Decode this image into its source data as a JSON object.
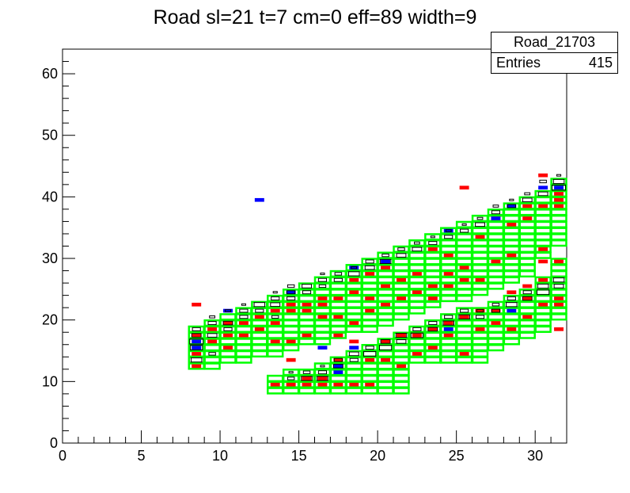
{
  "chart_data": {
    "type": "heatmap",
    "title": "Road sl=21 t=7 cm=0 eff=89 width=9",
    "xlabel": "",
    "ylabel": "",
    "xlim": [
      0,
      32
    ],
    "ylim": [
      0,
      64
    ],
    "x_ticks": [
      "0",
      "5",
      "10",
      "15",
      "20",
      "25",
      "30"
    ],
    "y_ticks": [
      "0",
      "10",
      "20",
      "30",
      "40",
      "50",
      "60"
    ],
    "stats": {
      "name": "Road_21703",
      "entries_label": "Entries",
      "entries_value": "415"
    },
    "colors": {
      "road": "#00ff00",
      "hit_red": "#ff0000",
      "hit_blue": "#0000ff",
      "box": "#000000"
    },
    "road_columns": [
      {
        "x": 8,
        "bands": [
          [
            12,
            19
          ]
        ]
      },
      {
        "x": 9,
        "bands": [
          [
            12,
            20
          ]
        ]
      },
      {
        "x": 10,
        "bands": [
          [
            13,
            21
          ]
        ]
      },
      {
        "x": 11,
        "bands": [
          [
            13,
            22
          ]
        ]
      },
      {
        "x": 12,
        "bands": [
          [
            14,
            23
          ]
        ]
      },
      {
        "x": 13,
        "bands": [
          [
            8,
            11
          ],
          [
            14,
            24
          ]
        ]
      },
      {
        "x": 14,
        "bands": [
          [
            8,
            12
          ],
          [
            15,
            25
          ]
        ]
      },
      {
        "x": 15,
        "bands": [
          [
            8,
            12
          ],
          [
            16,
            26
          ]
        ]
      },
      {
        "x": 16,
        "bands": [
          [
            8,
            13
          ],
          [
            16,
            27
          ]
        ]
      },
      {
        "x": 17,
        "bands": [
          [
            8,
            14
          ],
          [
            17,
            28
          ]
        ]
      },
      {
        "x": 18,
        "bands": [
          [
            8,
            15
          ],
          [
            18,
            29
          ]
        ]
      },
      {
        "x": 19,
        "bands": [
          [
            8,
            16
          ],
          [
            18,
            30
          ]
        ]
      },
      {
        "x": 20,
        "bands": [
          [
            8,
            17
          ],
          [
            19,
            31
          ]
        ]
      },
      {
        "x": 21,
        "bands": [
          [
            8,
            18
          ],
          [
            20,
            32
          ]
        ]
      },
      {
        "x": 22,
        "bands": [
          [
            13,
            19
          ],
          [
            21,
            33
          ]
        ]
      },
      {
        "x": 23,
        "bands": [
          [
            13,
            20
          ],
          [
            22,
            34
          ]
        ]
      },
      {
        "x": 24,
        "bands": [
          [
            13,
            21
          ],
          [
            23,
            35
          ]
        ]
      },
      {
        "x": 25,
        "bands": [
          [
            13,
            22
          ],
          [
            23,
            36
          ]
        ]
      },
      {
        "x": 26,
        "bands": [
          [
            13,
            22
          ],
          [
            24,
            37
          ]
        ]
      },
      {
        "x": 27,
        "bands": [
          [
            15,
            23
          ],
          [
            25,
            38
          ]
        ]
      },
      {
        "x": 28,
        "bands": [
          [
            16,
            24
          ],
          [
            26,
            39
          ]
        ]
      },
      {
        "x": 29,
        "bands": [
          [
            17,
            25
          ],
          [
            27,
            40
          ]
        ]
      },
      {
        "x": 30,
        "bands": [
          [
            18,
            27
          ],
          [
            30,
            41
          ]
        ]
      },
      {
        "x": 31,
        "bands": [
          [
            20,
            30
          ],
          [
            32,
            43
          ]
        ]
      }
    ],
    "red_cells": [
      [
        8,
        12
      ],
      [
        8,
        14
      ],
      [
        8,
        17
      ],
      [
        8,
        22
      ],
      [
        9,
        16
      ],
      [
        9,
        18
      ],
      [
        10,
        15
      ],
      [
        10,
        17
      ],
      [
        10,
        19
      ],
      [
        11,
        17
      ],
      [
        11,
        19
      ],
      [
        12,
        18
      ],
      [
        12,
        20
      ],
      [
        13,
        9
      ],
      [
        13,
        16
      ],
      [
        13,
        19
      ],
      [
        13,
        21
      ],
      [
        14,
        9
      ],
      [
        14,
        13
      ],
      [
        14,
        16
      ],
      [
        14,
        21
      ],
      [
        14,
        22
      ],
      [
        15,
        9
      ],
      [
        15,
        10
      ],
      [
        15,
        17
      ],
      [
        15,
        21
      ],
      [
        15,
        22
      ],
      [
        16,
        9
      ],
      [
        16,
        10
      ],
      [
        16,
        20
      ],
      [
        16,
        22
      ],
      [
        16,
        23
      ],
      [
        17,
        9
      ],
      [
        17,
        13
      ],
      [
        17,
        17
      ],
      [
        17,
        20
      ],
      [
        17,
        23
      ],
      [
        18,
        9
      ],
      [
        18,
        16
      ],
      [
        18,
        19
      ],
      [
        18,
        24
      ],
      [
        18,
        26
      ],
      [
        19,
        9
      ],
      [
        19,
        13
      ],
      [
        19,
        21
      ],
      [
        19,
        23
      ],
      [
        19,
        27
      ],
      [
        20,
        13
      ],
      [
        20,
        16
      ],
      [
        20,
        22
      ],
      [
        20,
        25
      ],
      [
        20,
        28
      ],
      [
        21,
        12
      ],
      [
        21,
        17
      ],
      [
        21,
        23
      ],
      [
        21,
        26
      ],
      [
        22,
        14
      ],
      [
        22,
        17
      ],
      [
        22,
        24
      ],
      [
        22,
        27
      ],
      [
        23,
        15
      ],
      [
        23,
        18
      ],
      [
        23,
        23
      ],
      [
        23,
        25
      ],
      [
        23,
        31
      ],
      [
        24,
        17
      ],
      [
        24,
        19
      ],
      [
        24,
        25
      ],
      [
        24,
        27
      ],
      [
        24,
        30
      ],
      [
        25,
        14
      ],
      [
        25,
        20
      ],
      [
        25,
        26
      ],
      [
        25,
        28
      ],
      [
        25,
        41
      ],
      [
        26,
        18
      ],
      [
        26,
        21
      ],
      [
        26,
        26
      ],
      [
        26,
        33
      ],
      [
        27,
        19
      ],
      [
        27,
        21
      ],
      [
        27,
        29
      ],
      [
        27,
        36
      ],
      [
        28,
        18
      ],
      [
        28,
        24
      ],
      [
        28,
        30
      ],
      [
        28,
        35
      ],
      [
        29,
        20
      ],
      [
        29,
        23
      ],
      [
        29,
        25
      ],
      [
        29,
        36
      ],
      [
        29,
        38
      ],
      [
        30,
        22
      ],
      [
        30,
        26
      ],
      [
        30,
        29
      ],
      [
        30,
        31
      ],
      [
        30,
        38
      ],
      [
        30,
        43
      ],
      [
        31,
        18
      ],
      [
        31,
        22
      ],
      [
        31,
        23
      ],
      [
        31,
        29
      ],
      [
        31,
        38
      ],
      [
        31,
        39
      ],
      [
        31,
        40
      ]
    ],
    "blue_cells": [
      [
        8,
        15
      ],
      [
        8,
        16
      ],
      [
        10,
        21
      ],
      [
        12,
        39
      ],
      [
        14,
        24
      ],
      [
        16,
        15
      ],
      [
        17,
        11
      ],
      [
        17,
        12
      ],
      [
        18,
        15
      ],
      [
        18,
        28
      ],
      [
        20,
        29
      ],
      [
        24,
        18
      ],
      [
        24,
        34
      ],
      [
        27,
        36
      ],
      [
        28,
        38
      ],
      [
        28,
        21
      ],
      [
        30,
        41
      ],
      [
        31,
        41
      ]
    ],
    "box_cells": [
      [
        8,
        13,
        0.8
      ],
      [
        8,
        15,
        0.9
      ],
      [
        8,
        16,
        1.0
      ],
      [
        8,
        17,
        0.7
      ],
      [
        8,
        18,
        0.6
      ],
      [
        9,
        14,
        0.5
      ],
      [
        9,
        17,
        0.7
      ],
      [
        9,
        19,
        0.6
      ],
      [
        9,
        20,
        0.4
      ],
      [
        10,
        18,
        0.6
      ],
      [
        10,
        19,
        0.7
      ],
      [
        10,
        21,
        0.4
      ],
      [
        11,
        20,
        0.6
      ],
      [
        11,
        21,
        0.6
      ],
      [
        11,
        22,
        0.3
      ],
      [
        12,
        21,
        0.6
      ],
      [
        12,
        22,
        0.8
      ],
      [
        13,
        20,
        0.5
      ],
      [
        13,
        22,
        0.7
      ],
      [
        13,
        23,
        0.6
      ],
      [
        13,
        24,
        0.3
      ],
      [
        14,
        10,
        0.5
      ],
      [
        14,
        11,
        0.3
      ],
      [
        14,
        23,
        0.6
      ],
      [
        14,
        24,
        0.6
      ],
      [
        14,
        25,
        0.5
      ],
      [
        15,
        10,
        0.8
      ],
      [
        15,
        11,
        0.5
      ],
      [
        15,
        24,
        0.6
      ],
      [
        15,
        25,
        0.7
      ],
      [
        16,
        10,
        0.8
      ],
      [
        16,
        11,
        0.6
      ],
      [
        16,
        12,
        0.3
      ],
      [
        16,
        25,
        0.5
      ],
      [
        16,
        26,
        0.6
      ],
      [
        16,
        27,
        0.3
      ],
      [
        17,
        12,
        0.7
      ],
      [
        17,
        13,
        0.6
      ],
      [
        17,
        26,
        0.6
      ],
      [
        17,
        27,
        0.5
      ],
      [
        18,
        13,
        0.6
      ],
      [
        18,
        14,
        0.7
      ],
      [
        18,
        27,
        0.8
      ],
      [
        18,
        28,
        0.4
      ],
      [
        19,
        14,
        0.9
      ],
      [
        19,
        15,
        0.6
      ],
      [
        19,
        28,
        0.7
      ],
      [
        19,
        29,
        0.6
      ],
      [
        20,
        15,
        0.9
      ],
      [
        20,
        16,
        0.7
      ],
      [
        20,
        29,
        0.8
      ],
      [
        20,
        30,
        0.5
      ],
      [
        21,
        16,
        0.7
      ],
      [
        21,
        17,
        0.8
      ],
      [
        21,
        30,
        0.7
      ],
      [
        21,
        31,
        0.5
      ],
      [
        22,
        17,
        0.9
      ],
      [
        22,
        18,
        0.6
      ],
      [
        22,
        31,
        0.7
      ],
      [
        22,
        32,
        0.4
      ],
      [
        23,
        18,
        0.7
      ],
      [
        23,
        19,
        0.6
      ],
      [
        23,
        32,
        0.6
      ],
      [
        23,
        33,
        0.3
      ],
      [
        24,
        19,
        0.8
      ],
      [
        24,
        20,
        0.6
      ],
      [
        24,
        33,
        0.6
      ],
      [
        24,
        34,
        0.4
      ],
      [
        25,
        20,
        0.8
      ],
      [
        25,
        21,
        0.6
      ],
      [
        25,
        34,
        0.6
      ],
      [
        25,
        35,
        0.3
      ],
      [
        26,
        20,
        0.6
      ],
      [
        26,
        21,
        0.5
      ],
      [
        26,
        35,
        0.7
      ],
      [
        26,
        36,
        0.4
      ],
      [
        27,
        21,
        0.6
      ],
      [
        27,
        22,
        0.5
      ],
      [
        27,
        37,
        0.6
      ],
      [
        27,
        38,
        0.4
      ],
      [
        28,
        22,
        0.8
      ],
      [
        28,
        23,
        0.6
      ],
      [
        28,
        38,
        0.6
      ],
      [
        28,
        39,
        0.3
      ],
      [
        29,
        23,
        0.7
      ],
      [
        29,
        24,
        0.6
      ],
      [
        29,
        39,
        0.7
      ],
      [
        29,
        40,
        0.4
      ],
      [
        30,
        24,
        0.9
      ],
      [
        30,
        25,
        0.8
      ],
      [
        30,
        40,
        0.7
      ],
      [
        30,
        42,
        0.5
      ],
      [
        31,
        25,
        0.7
      ],
      [
        31,
        26,
        0.8
      ],
      [
        31,
        41,
        1.0
      ],
      [
        31,
        42,
        0.8
      ],
      [
        31,
        43,
        0.3
      ]
    ]
  }
}
